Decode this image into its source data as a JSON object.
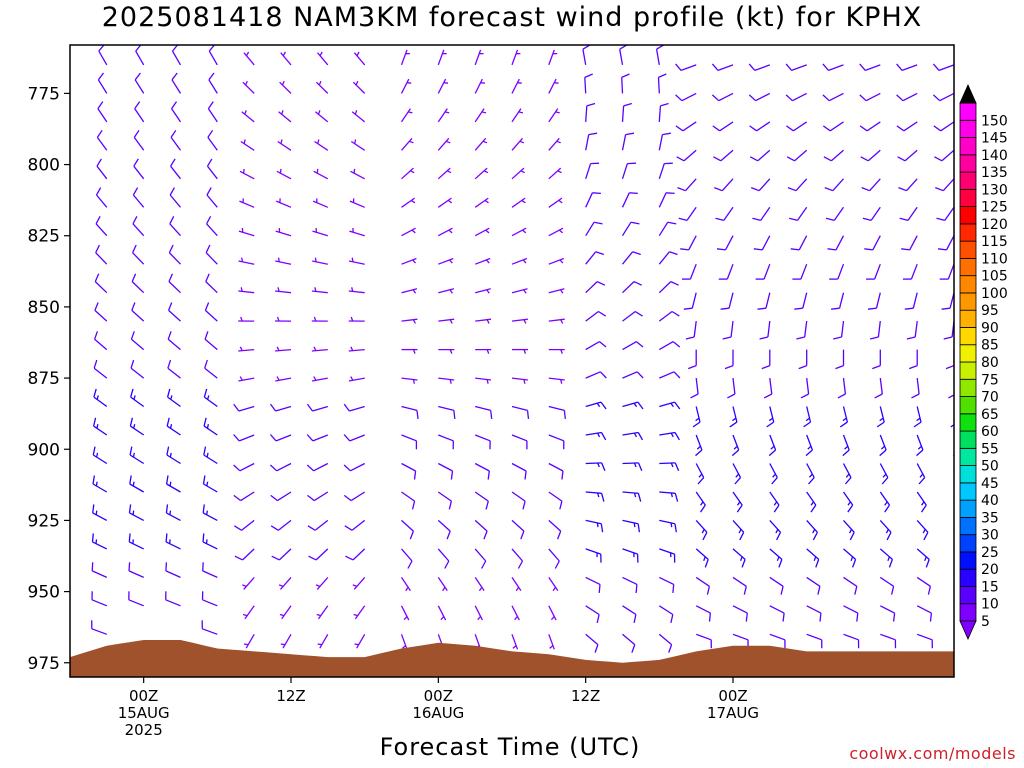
{
  "header": {
    "title": "2025081418 NAM3KM forecast wind profile (kt) for KPHX"
  },
  "footer": {
    "xaxis_title": "Forecast Time (UTC)",
    "credit": "coolwx.com/models"
  },
  "chart_data": {
    "type": "wind-barb-time-height",
    "title": "2025081418 NAM3KM forecast wind profile (kt) for KPHX",
    "xlabel": "Forecast Time (UTC)",
    "ylabel": "",
    "y_axis": {
      "reversed": true,
      "ticks": [
        775,
        800,
        825,
        850,
        875,
        900,
        925,
        950,
        975
      ],
      "range": [
        758,
        980
      ]
    },
    "x_axis": {
      "start_hour": -6,
      "end_hour": 66,
      "step_hours": 3,
      "ticks": [
        {
          "hour": 0,
          "lines": [
            "00Z",
            "15AUG",
            "2025"
          ]
        },
        {
          "hour": 12,
          "lines": [
            "12Z"
          ]
        },
        {
          "hour": 24,
          "lines": [
            "00Z",
            "16AUG"
          ]
        },
        {
          "hour": 36,
          "lines": [
            "12Z"
          ]
        },
        {
          "hour": 48,
          "lines": [
            "00Z",
            "17AUG"
          ]
        }
      ]
    },
    "surface_pressure_mb": [
      {
        "hour": -6,
        "p": 973
      },
      {
        "hour": -3,
        "p": 969
      },
      {
        "hour": 0,
        "p": 967
      },
      {
        "hour": 3,
        "p": 967
      },
      {
        "hour": 6,
        "p": 970
      },
      {
        "hour": 9,
        "p": 971
      },
      {
        "hour": 12,
        "p": 972
      },
      {
        "hour": 15,
        "p": 973
      },
      {
        "hour": 18,
        "p": 973
      },
      {
        "hour": 21,
        "p": 970
      },
      {
        "hour": 24,
        "p": 968
      },
      {
        "hour": 27,
        "p": 969
      },
      {
        "hour": 30,
        "p": 971
      },
      {
        "hour": 33,
        "p": 972
      },
      {
        "hour": 36,
        "p": 974
      },
      {
        "hour": 39,
        "p": 975
      },
      {
        "hour": 42,
        "p": 974
      },
      {
        "hour": 45,
        "p": 971
      },
      {
        "hour": 48,
        "p": 969
      },
      {
        "hour": 51,
        "p": 969
      },
      {
        "hour": 54,
        "p": 971
      }
    ],
    "levels_mb": [
      765,
      775,
      785,
      795,
      805,
      815,
      825,
      835,
      845,
      855,
      865,
      875,
      885,
      895,
      905,
      915,
      925,
      935,
      945,
      955,
      965
    ],
    "wind_regimes": [
      {
        "hours": [
          -6,
          6
        ],
        "speed_kt": 12,
        "dir_upper_deg": 330,
        "dir_lower_deg": 290
      },
      {
        "hours": [
          7,
          20
        ],
        "speed_kt": 8,
        "dir_upper_deg": 320,
        "dir_lower_deg": 210
      },
      {
        "hours": [
          21,
          34
        ],
        "speed_kt": 8,
        "dir_upper_deg": 20,
        "dir_lower_deg": 160
      },
      {
        "hours": [
          35,
          44
        ],
        "speed_kt": 10,
        "dir_upper_deg": 350,
        "dir_lower_deg": 130
      },
      {
        "hours": [
          45,
          66
        ],
        "speed_kt": 12,
        "dir_upper_deg": 250,
        "dir_lower_deg": 110
      }
    ],
    "colorbar": {
      "unit": "kt",
      "values": [
        5,
        10,
        15,
        20,
        25,
        30,
        35,
        40,
        45,
        50,
        55,
        60,
        65,
        70,
        75,
        80,
        85,
        90,
        95,
        100,
        105,
        110,
        115,
        120,
        125,
        130,
        135,
        140,
        145,
        150
      ],
      "colors": [
        "#7f00ff",
        "#5a00ff",
        "#2a00ff",
        "#0010ff",
        "#0040ff",
        "#0070ff",
        "#00a0ff",
        "#00c8ff",
        "#00e0d8",
        "#00e8a0",
        "#00e060",
        "#10e010",
        "#50e000",
        "#90e800",
        "#c8f000",
        "#f0f000",
        "#ffd800",
        "#ffb000",
        "#ff9800",
        "#ff8800",
        "#ff7000",
        "#ff5000",
        "#ff2800",
        "#ff0000",
        "#ff0040",
        "#ff0070",
        "#ff00a0",
        "#ff00c8",
        "#ff00e8",
        "#ff00ff"
      ],
      "top_cap_color": "#000000",
      "bottom_cap_color": "#8000ff"
    },
    "terrain_color": "#a0522d",
    "grid": false,
    "legend": "right"
  }
}
